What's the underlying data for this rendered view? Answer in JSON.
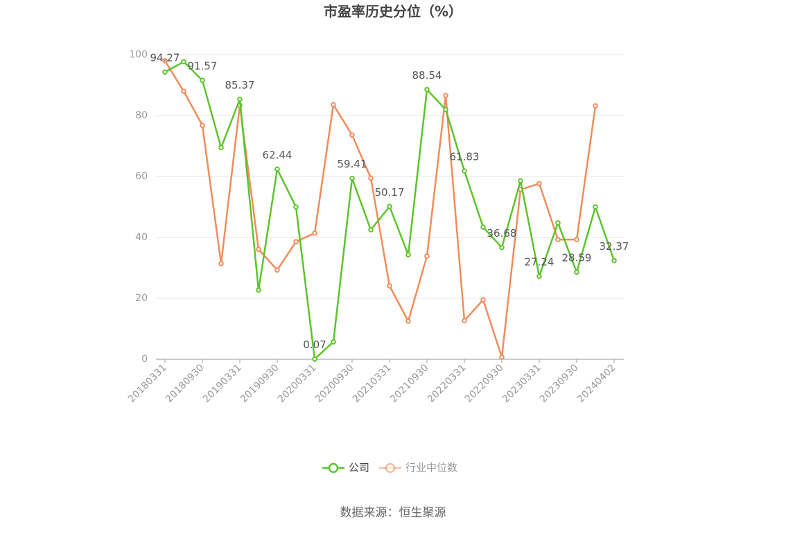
{
  "chart_data": {
    "type": "line",
    "title": "市盈率历史分位（%）",
    "source": "数据来源：恒生聚源",
    "categories": [
      "20180331",
      null,
      "20180930",
      null,
      "20190331",
      null,
      "20190930",
      null,
      "20200331",
      null,
      "20200930",
      null,
      "20210331",
      null,
      "20210930",
      null,
      "20220331",
      null,
      "20220930",
      null,
      "20230331",
      null,
      "20230930",
      null,
      "20240402"
    ],
    "series": [
      {
        "name": "公司",
        "color": "#5cc42a",
        "values": [
          94.27,
          97.7,
          91.57,
          69.5,
          85.37,
          22.7,
          62.44,
          50.0,
          0.07,
          5.7,
          59.41,
          42.5,
          50.17,
          34.3,
          88.54,
          82.0,
          61.83,
          43.4,
          36.68,
          58.6,
          27.24,
          44.8,
          28.59,
          50.0,
          32.37
        ],
        "value_labels": [
          "94.27",
          null,
          "91.57",
          null,
          "85.37",
          null,
          "62.44",
          null,
          "0.07",
          null,
          "59.41",
          null,
          "50.17",
          null,
          "88.54",
          null,
          "61.83",
          null,
          "36.68",
          null,
          "27.24",
          null,
          "28.59",
          null,
          "32.37"
        ]
      },
      {
        "name": "行业中位数",
        "color": "#f08c5a",
        "values": [
          98.0,
          88.0,
          76.8,
          31.4,
          83.4,
          36.1,
          29.3,
          38.6,
          41.4,
          83.6,
          73.6,
          59.5,
          24.1,
          12.5,
          33.9,
          86.6,
          12.7,
          19.5,
          0.7,
          55.7,
          57.7,
          39.3,
          39.3,
          83.2,
          null
        ]
      }
    ],
    "ylim": [
      0,
      100
    ],
    "yticks": [
      0,
      20,
      40,
      60,
      80,
      100
    ],
    "grid": true
  }
}
